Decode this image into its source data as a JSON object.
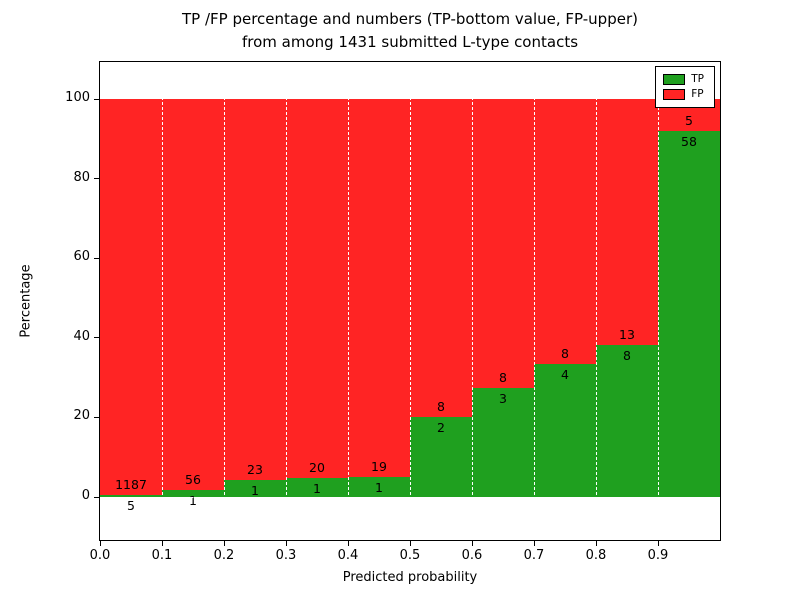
{
  "chart_data": {
    "type": "bar",
    "stacked": true,
    "title_line1": "TP /FP percentage and numbers (TP-bottom value, FP-upper)",
    "title_line2": "from among 1431 submitted L-type contacts",
    "xlabel": "Predicted probability",
    "ylabel": "Percentage",
    "x_ticks": [
      "0.0",
      "0.1",
      "0.2",
      "0.3",
      "0.4",
      "0.5",
      "0.6",
      "0.7",
      "0.8",
      "0.9"
    ],
    "y_ticks": [
      0,
      20,
      40,
      60,
      80,
      100
    ],
    "ylim": [
      -11,
      109
    ],
    "xlim": [
      0.0,
      1.0
    ],
    "total_contacts": 1431,
    "bins": [
      {
        "x0": 0.0,
        "x1": 0.1,
        "tp": 5,
        "fp": 1187
      },
      {
        "x0": 0.1,
        "x1": 0.2,
        "tp": 1,
        "fp": 56
      },
      {
        "x0": 0.2,
        "x1": 0.3,
        "tp": 1,
        "fp": 23
      },
      {
        "x0": 0.3,
        "x1": 0.4,
        "tp": 1,
        "fp": 20
      },
      {
        "x0": 0.4,
        "x1": 0.5,
        "tp": 1,
        "fp": 19
      },
      {
        "x0": 0.5,
        "x1": 0.6,
        "tp": 2,
        "fp": 8
      },
      {
        "x0": 0.6,
        "x1": 0.7,
        "tp": 3,
        "fp": 8
      },
      {
        "x0": 0.7,
        "x1": 0.8,
        "tp": 4,
        "fp": 8
      },
      {
        "x0": 0.8,
        "x1": 0.9,
        "tp": 8,
        "fp": 13
      },
      {
        "x0": 0.9,
        "x1": 1.0,
        "tp": 58,
        "fp": 5
      }
    ],
    "legend": [
      {
        "label": "TP",
        "color": "#1fa01f"
      },
      {
        "label": "FP",
        "color": "#ff2424"
      }
    ],
    "colors": {
      "tp": "#1fa01f",
      "fp": "#ff2424",
      "grid": "#ffffff",
      "axis": "#000000"
    },
    "legend_position": "upper right",
    "grid": "vertical dashed white + dashed line at y=0"
  }
}
